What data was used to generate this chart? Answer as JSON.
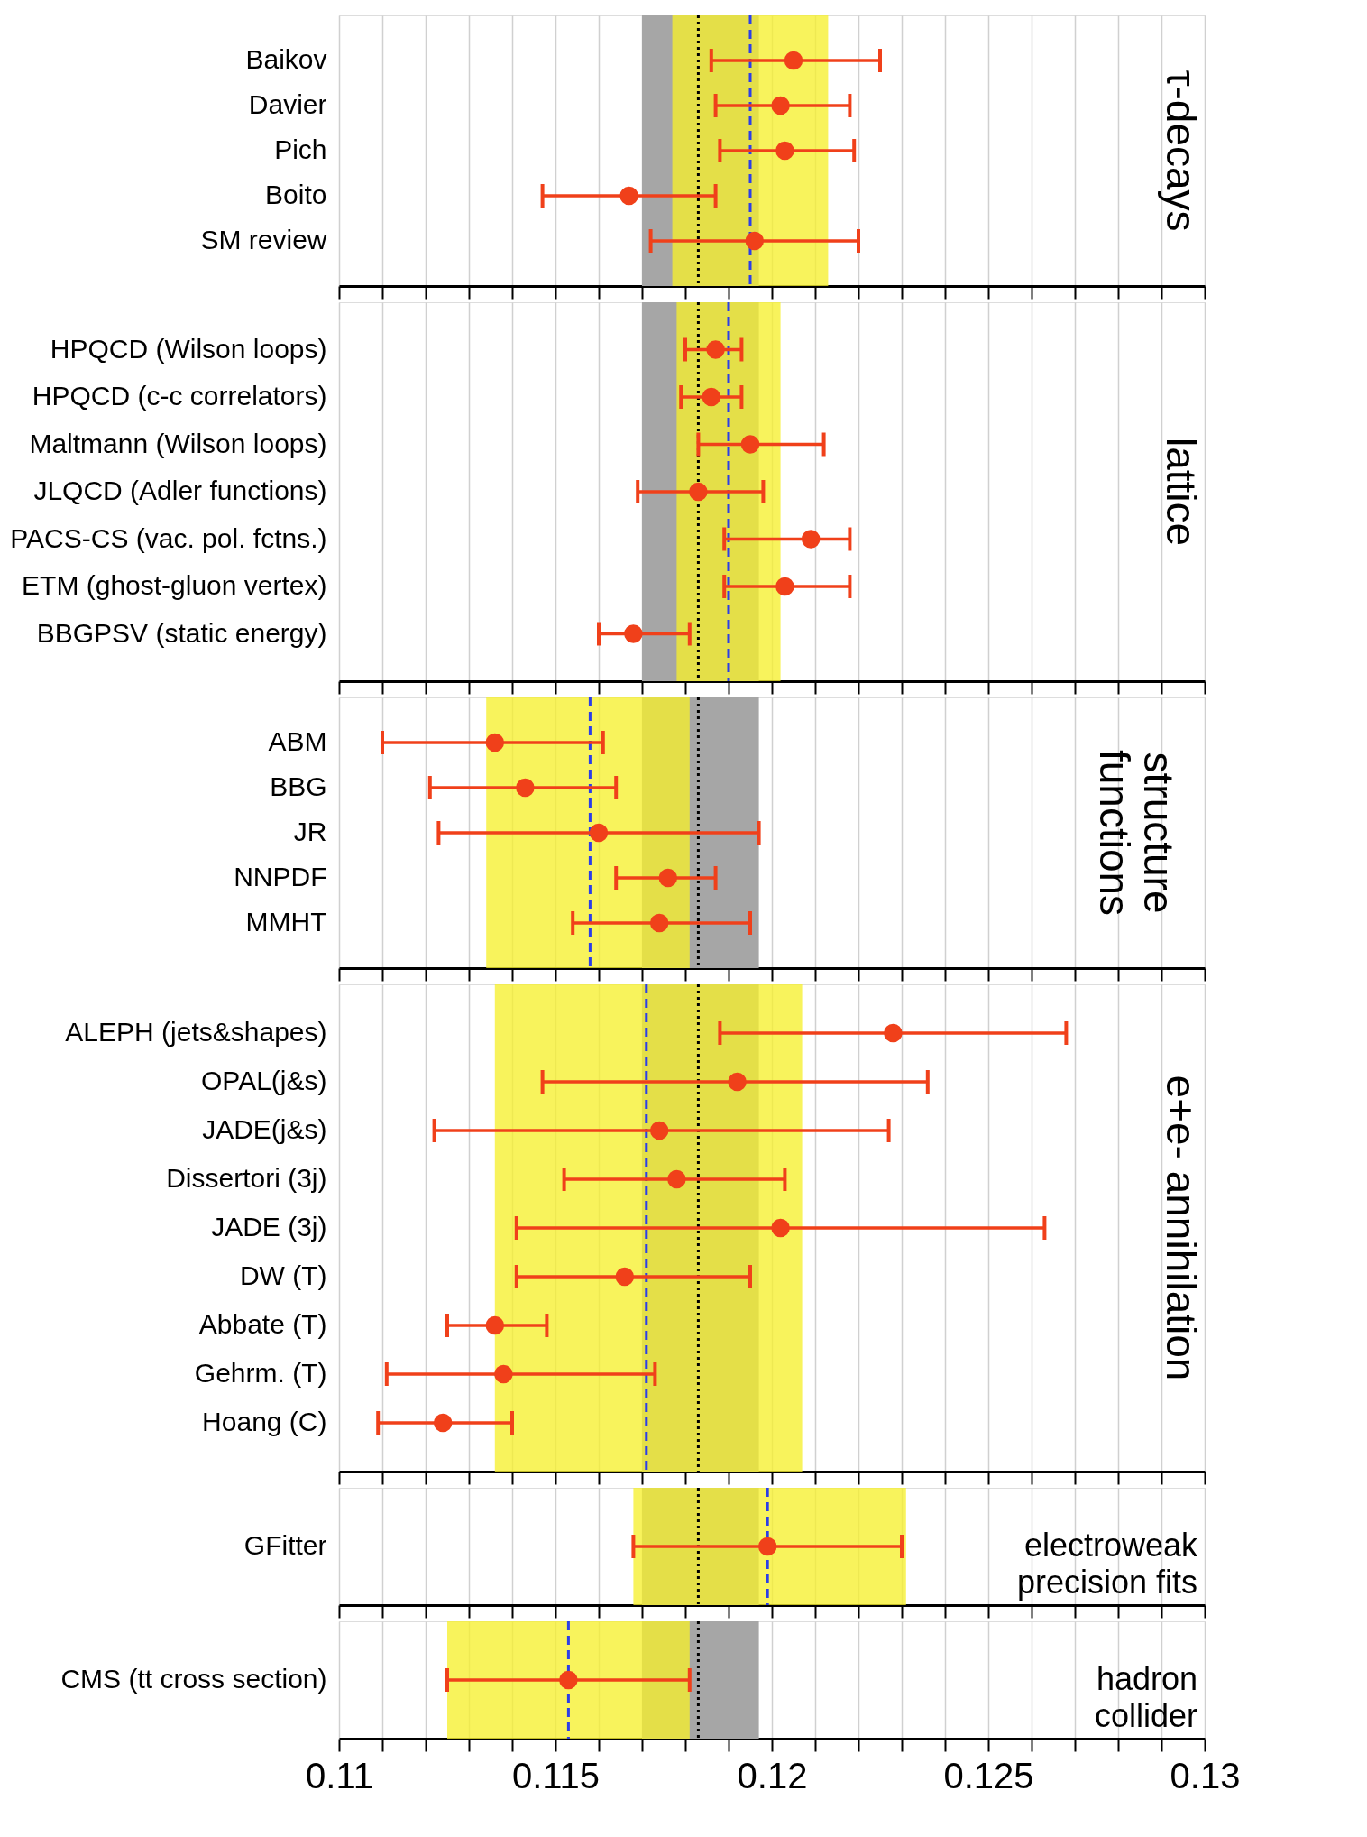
{
  "chart_data": [
    {
      "type": "scatter",
      "orientation": "horizontal",
      "title": "τ-decays",
      "categories": [
        "Baikov",
        "Davier",
        "Pich",
        "Boito",
        "SM review"
      ],
      "values": [
        0.1205,
        0.1202,
        0.1203,
        0.1167,
        0.1196
      ],
      "errors": [
        [
          0.1186,
          0.1225
        ],
        [
          0.1187,
          0.1218
        ],
        [
          0.1188,
          0.1219
        ],
        [
          0.1147,
          0.1187
        ],
        [
          0.1172,
          0.122
        ]
      ],
      "color": "#f0401a",
      "marker": "circle",
      "grid": "x",
      "tick_labels": "y",
      "xlim": [
        0.11,
        0.13
      ],
      "xticks": [
        0.11,
        {
          "value": 0.111,
          "label": null
        },
        {
          "value": 0.112,
          "label": null
        },
        {
          "value": 0.113,
          "label": null
        },
        {
          "value": 0.114,
          "label": null
        },
        0.115,
        {
          "value": 0.116,
          "label": null
        },
        {
          "value": 0.117,
          "label": null
        },
        {
          "value": 0.118,
          "label": null
        },
        {
          "value": 0.119,
          "label": null
        },
        0.12,
        {
          "value": 0.121,
          "label": null
        },
        {
          "value": 0.122,
          "label": null
        },
        {
          "value": 0.123,
          "label": null
        },
        {
          "value": 0.124,
          "label": null
        },
        0.125,
        {
          "value": 0.126,
          "label": null
        },
        {
          "value": 0.127,
          "label": null
        },
        {
          "value": 0.128,
          "label": null
        },
        {
          "value": 0.129,
          "label": null
        },
        0.13
      ],
      "bands": [
        {
          "axis": "x",
          "from": 0.117,
          "to": 0.1197,
          "color": "#a6a6a6"
        },
        {
          "axis": "x",
          "from": 0.1177,
          "to": 0.1213,
          "color": "#f6ef2e"
        }
      ],
      "ref_lines": [
        {
          "axis": "x",
          "value": 0.1183,
          "color": "#000000",
          "line_style": "dotted"
        },
        {
          "axis": "x",
          "value": 0.1195,
          "color": "#2b3ee8",
          "line_style": "dashed"
        }
      ]
    },
    {
      "type": "scatter",
      "orientation": "horizontal",
      "title": "lattice",
      "categories": [
        "HPQCD (Wilson loops)",
        "HPQCD (c-c correlators)",
        "Maltmann (Wilson loops)",
        "JLQCD (Adler functions)",
        "PACS-CS (vac. pol. fctns.)",
        "ETM (ghost-gluon vertex)",
        "BBGPSV (static energy)"
      ],
      "values": [
        0.1187,
        0.1186,
        0.1195,
        0.1183,
        0.1209,
        0.1203,
        0.1168
      ],
      "errors": [
        [
          0.118,
          0.1193
        ],
        [
          0.1179,
          0.1193
        ],
        [
          0.1183,
          0.1212
        ],
        [
          0.1169,
          0.1198
        ],
        [
          0.1189,
          0.1218
        ],
        [
          0.1189,
          0.1218
        ],
        [
          0.116,
          0.1181
        ]
      ],
      "color": "#f0401a",
      "marker": "circle",
      "grid": "x",
      "tick_labels": "y",
      "xlim": [
        0.11,
        0.13
      ],
      "xticks": [
        0.11,
        {
          "value": 0.111,
          "label": null
        },
        {
          "value": 0.112,
          "label": null
        },
        {
          "value": 0.113,
          "label": null
        },
        {
          "value": 0.114,
          "label": null
        },
        0.115,
        {
          "value": 0.116,
          "label": null
        },
        {
          "value": 0.117,
          "label": null
        },
        {
          "value": 0.118,
          "label": null
        },
        {
          "value": 0.119,
          "label": null
        },
        0.12,
        {
          "value": 0.121,
          "label": null
        },
        {
          "value": 0.122,
          "label": null
        },
        {
          "value": 0.123,
          "label": null
        },
        {
          "value": 0.124,
          "label": null
        },
        0.125,
        {
          "value": 0.126,
          "label": null
        },
        {
          "value": 0.127,
          "label": null
        },
        {
          "value": 0.128,
          "label": null
        },
        {
          "value": 0.129,
          "label": null
        },
        0.13
      ],
      "bands": [
        {
          "axis": "x",
          "from": 0.117,
          "to": 0.1197,
          "color": "#a6a6a6"
        },
        {
          "axis": "x",
          "from": 0.1178,
          "to": 0.1202,
          "color": "#f6ef2e"
        }
      ],
      "ref_lines": [
        {
          "axis": "x",
          "value": 0.1183,
          "color": "#000000",
          "line_style": "dotted"
        },
        {
          "axis": "x",
          "value": 0.119,
          "color": "#2b3ee8",
          "line_style": "dashed"
        }
      ]
    },
    {
      "type": "scatter",
      "orientation": "horizontal",
      "title": "structure functions",
      "categories": [
        "ABM",
        "BBG",
        "JR",
        "NNPDF",
        "MMHT"
      ],
      "values": [
        0.1136,
        0.1143,
        0.116,
        0.1176,
        0.1174
      ],
      "errors": [
        [
          0.111,
          0.1161
        ],
        [
          0.1121,
          0.1164
        ],
        [
          0.1123,
          0.1197
        ],
        [
          0.1164,
          0.1187
        ],
        [
          0.1154,
          0.1195
        ]
      ],
      "color": "#f0401a",
      "marker": "circle",
      "grid": "x",
      "tick_labels": "y",
      "xlim": [
        0.11,
        0.13
      ],
      "xticks": [
        0.11,
        {
          "value": 0.111,
          "label": null
        },
        {
          "value": 0.112,
          "label": null
        },
        {
          "value": 0.113,
          "label": null
        },
        {
          "value": 0.114,
          "label": null
        },
        0.115,
        {
          "value": 0.116,
          "label": null
        },
        {
          "value": 0.117,
          "label": null
        },
        {
          "value": 0.118,
          "label": null
        },
        {
          "value": 0.119,
          "label": null
        },
        0.12,
        {
          "value": 0.121,
          "label": null
        },
        {
          "value": 0.122,
          "label": null
        },
        {
          "value": 0.123,
          "label": null
        },
        {
          "value": 0.124,
          "label": null
        },
        0.125,
        {
          "value": 0.126,
          "label": null
        },
        {
          "value": 0.127,
          "label": null
        },
        {
          "value": 0.128,
          "label": null
        },
        {
          "value": 0.129,
          "label": null
        },
        0.13
      ],
      "bands": [
        {
          "axis": "x",
          "from": 0.117,
          "to": 0.1197,
          "color": "#a6a6a6"
        },
        {
          "axis": "x",
          "from": 0.1134,
          "to": 0.1181,
          "color": "#f6ef2e"
        }
      ],
      "ref_lines": [
        {
          "axis": "x",
          "value": 0.1183,
          "color": "#000000",
          "line_style": "dotted"
        },
        {
          "axis": "x",
          "value": 0.1158,
          "color": "#2b3ee8",
          "line_style": "dashed"
        }
      ]
    },
    {
      "type": "scatter",
      "orientation": "horizontal",
      "title": "e+e- annihilation",
      "categories": [
        "ALEPH (jets&shapes)",
        "OPAL(j&s)",
        "JADE(j&s)",
        "Dissertori (3j)",
        "JADE (3j)",
        "DW (T)",
        "Abbate (T)",
        "Gehrm. (T)",
        "Hoang (C)"
      ],
      "values": [
        0.1228,
        0.1192,
        0.1174,
        0.1178,
        0.1202,
        0.1166,
        0.1136,
        0.1138,
        0.1124
      ],
      "errors": [
        [
          0.1188,
          0.1268
        ],
        [
          0.1147,
          0.1236
        ],
        [
          0.1122,
          0.1227
        ],
        [
          0.1152,
          0.1203
        ],
        [
          0.1141,
          0.1263
        ],
        [
          0.1141,
          0.1195
        ],
        [
          0.1125,
          0.1148
        ],
        [
          0.1111,
          0.1173
        ],
        [
          0.1109,
          0.114
        ]
      ],
      "color": "#f0401a",
      "marker": "circle",
      "grid": "x",
      "tick_labels": "y",
      "xlim": [
        0.11,
        0.13
      ],
      "xticks": [
        0.11,
        {
          "value": 0.111,
          "label": null
        },
        {
          "value": 0.112,
          "label": null
        },
        {
          "value": 0.113,
          "label": null
        },
        {
          "value": 0.114,
          "label": null
        },
        0.115,
        {
          "value": 0.116,
          "label": null
        },
        {
          "value": 0.117,
          "label": null
        },
        {
          "value": 0.118,
          "label": null
        },
        {
          "value": 0.119,
          "label": null
        },
        0.12,
        {
          "value": 0.121,
          "label": null
        },
        {
          "value": 0.122,
          "label": null
        },
        {
          "value": 0.123,
          "label": null
        },
        {
          "value": 0.124,
          "label": null
        },
        0.125,
        {
          "value": 0.126,
          "label": null
        },
        {
          "value": 0.127,
          "label": null
        },
        {
          "value": 0.128,
          "label": null
        },
        {
          "value": 0.129,
          "label": null
        },
        0.13
      ],
      "bands": [
        {
          "axis": "x",
          "from": 0.117,
          "to": 0.1197,
          "color": "#a6a6a6"
        },
        {
          "axis": "x",
          "from": 0.1136,
          "to": 0.1207,
          "color": "#f6ef2e"
        }
      ],
      "ref_lines": [
        {
          "axis": "x",
          "value": 0.1183,
          "color": "#000000",
          "line_style": "dotted"
        },
        {
          "axis": "x",
          "value": 0.1171,
          "color": "#2b3ee8",
          "line_style": "dashed"
        }
      ]
    },
    {
      "type": "scatter",
      "orientation": "horizontal",
      "title": "electroweak precision fits",
      "categories": [
        "GFitter"
      ],
      "values": [
        0.1199
      ],
      "errors": [
        [
          0.1168,
          0.123
        ]
      ],
      "color": "#f0401a",
      "marker": "circle",
      "grid": "x",
      "tick_labels": "y",
      "xlim": [
        0.11,
        0.13
      ],
      "xticks": [
        0.11,
        {
          "value": 0.111,
          "label": null
        },
        {
          "value": 0.112,
          "label": null
        },
        {
          "value": 0.113,
          "label": null
        },
        {
          "value": 0.114,
          "label": null
        },
        0.115,
        {
          "value": 0.116,
          "label": null
        },
        {
          "value": 0.117,
          "label": null
        },
        {
          "value": 0.118,
          "label": null
        },
        {
          "value": 0.119,
          "label": null
        },
        0.12,
        {
          "value": 0.121,
          "label": null
        },
        {
          "value": 0.122,
          "label": null
        },
        {
          "value": 0.123,
          "label": null
        },
        {
          "value": 0.124,
          "label": null
        },
        0.125,
        {
          "value": 0.126,
          "label": null
        },
        {
          "value": 0.127,
          "label": null
        },
        {
          "value": 0.128,
          "label": null
        },
        {
          "value": 0.129,
          "label": null
        },
        0.13
      ],
      "bands": [
        {
          "axis": "x",
          "from": 0.117,
          "to": 0.1197,
          "color": "#a6a6a6"
        },
        {
          "axis": "x",
          "from": 0.1168,
          "to": 0.1231,
          "color": "#f6ef2e"
        }
      ],
      "ref_lines": [
        {
          "axis": "x",
          "value": 0.1183,
          "color": "#000000",
          "line_style": "dotted"
        },
        {
          "axis": "x",
          "value": 0.1199,
          "color": "#2b3ee8",
          "line_style": "dashed"
        }
      ]
    },
    {
      "type": "scatter",
      "orientation": "horizontal",
      "title": "hadron collider",
      "categories": [
        "CMS (tt cross section)"
      ],
      "values": [
        0.1153
      ],
      "errors": [
        [
          0.1125,
          0.1181
        ]
      ],
      "color": "#f0401a",
      "marker": "circle",
      "grid": "x",
      "xlim": [
        0.11,
        0.13
      ],
      "xticks": [
        0.11,
        {
          "value": 0.111,
          "label": null
        },
        {
          "value": 0.112,
          "label": null
        },
        {
          "value": 0.113,
          "label": null
        },
        {
          "value": 0.114,
          "label": null
        },
        0.115,
        {
          "value": 0.116,
          "label": null
        },
        {
          "value": 0.117,
          "label": null
        },
        {
          "value": 0.118,
          "label": null
        },
        {
          "value": 0.119,
          "label": null
        },
        0.12,
        {
          "value": 0.121,
          "label": null
        },
        {
          "value": 0.122,
          "label": null
        },
        {
          "value": 0.123,
          "label": null
        },
        {
          "value": 0.124,
          "label": null
        },
        0.125,
        {
          "value": 0.126,
          "label": null
        },
        {
          "value": 0.127,
          "label": null
        },
        {
          "value": 0.128,
          "label": null
        },
        {
          "value": 0.129,
          "label": null
        },
        0.13
      ],
      "bands": [
        {
          "axis": "x",
          "from": 0.117,
          "to": 0.1197,
          "color": "#a6a6a6"
        },
        {
          "axis": "x",
          "from": 0.1125,
          "to": 0.1181,
          "color": "#f6ef2e"
        }
      ],
      "ref_lines": [
        {
          "axis": "x",
          "value": 0.1183,
          "color": "#000000",
          "line_style": "dotted"
        },
        {
          "axis": "x",
          "value": 0.1153,
          "color": "#2b3ee8",
          "line_style": "dashed"
        }
      ]
    }
  ]
}
